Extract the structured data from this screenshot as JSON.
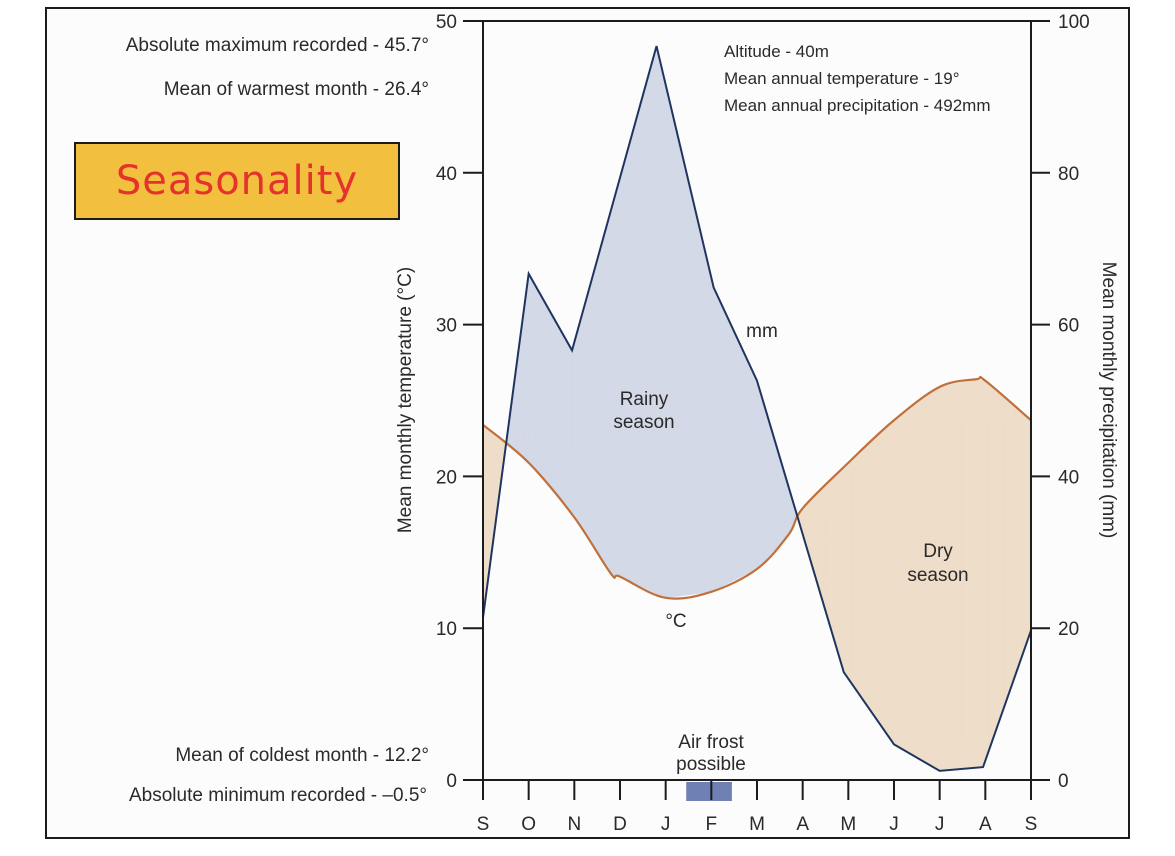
{
  "left_stats": {
    "abs_max": "Absolute maximum recorded - 45.7°",
    "mean_warmest": "Mean of warmest month - 26.4°",
    "mean_coldest": "Mean of coldest month - 12.2°",
    "abs_min": "Absolute minimum recorded - –0.5°"
  },
  "badge": {
    "label": "Seasonality",
    "background": "#F3BF3F",
    "text_color": "#E3332B"
  },
  "info": {
    "altitude": "Altitude - 40m",
    "mean_temp": "Mean annual temperature - 19°",
    "mean_precip": "Mean annual precipitation - 492mm"
  },
  "colors": {
    "temperature_line": "#C0703A",
    "precipitation_line": "#1F3560",
    "rainy_fill": "#D3D9E7",
    "dry_fill": "#EEDDC8",
    "frost_bar": "#6F80B5",
    "axis": "#1c1c1c"
  },
  "chart_data": {
    "type": "line",
    "title": "",
    "xlabel": "",
    "categories": [
      "S",
      "O",
      "N",
      "D",
      "J",
      "F",
      "M",
      "A",
      "M",
      "J",
      "J",
      "A",
      "S"
    ],
    "ylabel_left": "Mean monthly temperature (°C)",
    "ylabel_right": "Mean monthly precipitation (mm)",
    "ylim_left": [
      0,
      50
    ],
    "ylim_right": [
      0,
      100
    ],
    "yticks_left": [
      0,
      10,
      20,
      30,
      40,
      50
    ],
    "yticks_right": [
      0,
      20,
      40,
      60,
      80,
      100
    ],
    "grid": false,
    "series": [
      {
        "name": "Temperature",
        "label": "°C",
        "axis": "left",
        "x": [
          0,
          1,
          2,
          2.8,
          3,
          4,
          5,
          6,
          6.7,
          7,
          8,
          9,
          10,
          10.8,
          11,
          12
        ],
        "values": [
          23.4,
          20.9,
          17.3,
          13.6,
          13.4,
          12.0,
          12.4,
          13.9,
          16.2,
          17.9,
          20.9,
          23.7,
          25.9,
          26.4,
          26.3,
          23.7
        ]
      },
      {
        "name": "Precipitation",
        "label": "mm",
        "axis": "right",
        "x": [
          0,
          1,
          1.95,
          3.8,
          5.05,
          6,
          7.9,
          9,
          10,
          10.95,
          12
        ],
        "values": [
          21.4,
          66.7,
          56.6,
          96.7,
          64.9,
          52.6,
          14.2,
          4.7,
          1.2,
          1.7,
          19.7
        ]
      }
    ],
    "annotations": {
      "rainy": [
        "Rainy",
        "season"
      ],
      "dry": [
        "Dry",
        "season"
      ],
      "temp_label": "°C",
      "precip_label": "mm",
      "frost": [
        "Air frost",
        "possible"
      ]
    },
    "frost_period": [
      4.45,
      5.45
    ]
  }
}
